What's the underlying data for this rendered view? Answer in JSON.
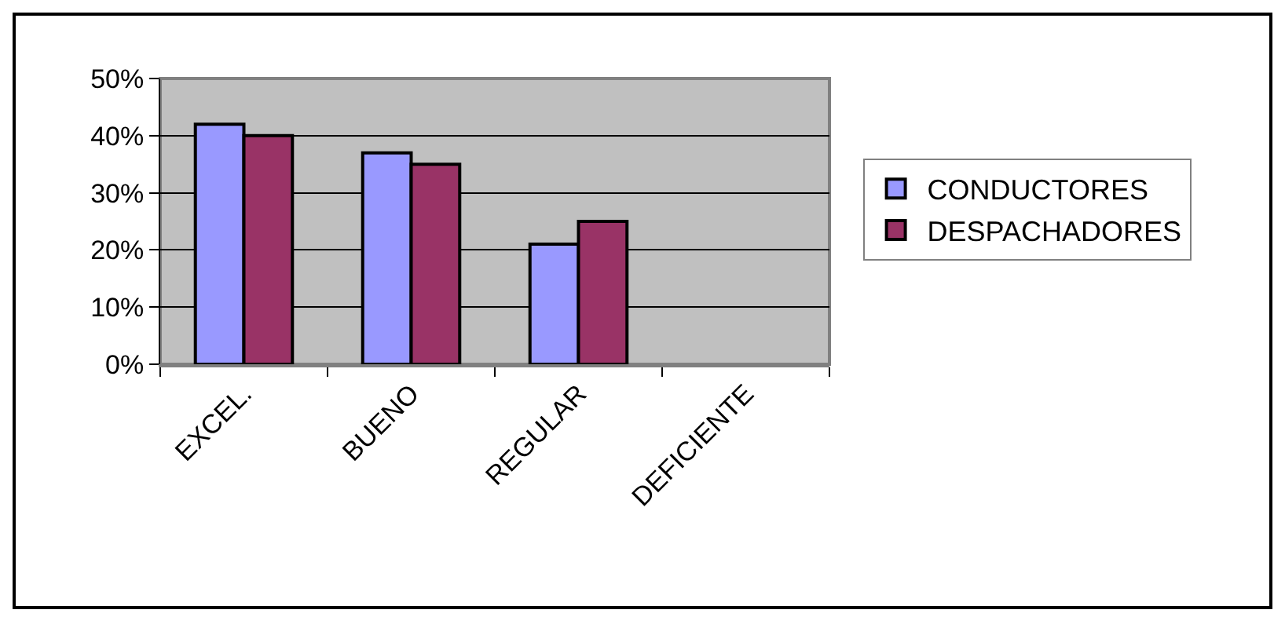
{
  "chart_data": {
    "type": "bar",
    "categories": [
      "EXCEL.",
      "BUENO",
      "REGULAR",
      "DEFICIENTE"
    ],
    "series": [
      {
        "name": "CONDUCTORES",
        "color": "#9999ff",
        "values": [
          42,
          37,
          21,
          null
        ]
      },
      {
        "name": "DESPACHADORES",
        "color": "#993366",
        "values": [
          40,
          35,
          25,
          null
        ]
      }
    ],
    "ylim": [
      0,
      50
    ],
    "yticks": [
      {
        "value": 0,
        "label": "0%"
      },
      {
        "value": 10,
        "label": "10%"
      },
      {
        "value": 20,
        "label": "20%"
      },
      {
        "value": 30,
        "label": "30%"
      },
      {
        "value": 40,
        "label": "40%"
      },
      {
        "value": 50,
        "label": "50%"
      }
    ],
    "grid": "y",
    "legend": "right"
  }
}
